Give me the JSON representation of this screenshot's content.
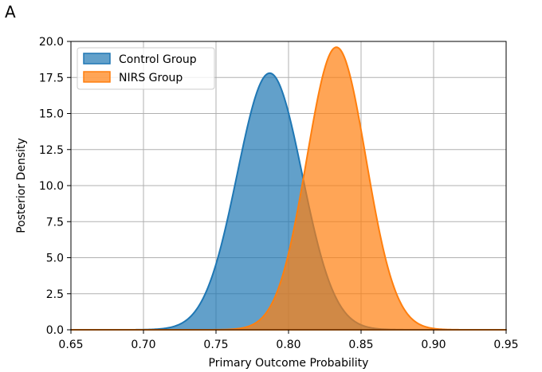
{
  "panel_label": "A",
  "chart_data": {
    "type": "area",
    "title": "",
    "xlabel": "Primary Outcome Probability",
    "ylabel": "Posterior Density",
    "xlim": [
      0.65,
      0.95
    ],
    "ylim": [
      0,
      20
    ],
    "xticks": [
      "0.65",
      "0.70",
      "0.75",
      "0.80",
      "0.85",
      "0.90",
      "0.95"
    ],
    "yticks": [
      "0.0",
      "2.5",
      "5.0",
      "7.5",
      "10.0",
      "12.5",
      "15.0",
      "17.5",
      "20.0"
    ],
    "grid": true,
    "legend_position": "top-left",
    "series": [
      {
        "name": "Control Group",
        "color": "#1f77b4",
        "distribution": "normal",
        "mean": 0.787,
        "sd": 0.0224,
        "peak_density": 17.8
      },
      {
        "name": "NIRS Group",
        "color": "#ff7f0e",
        "distribution": "normal",
        "mean": 0.833,
        "sd": 0.0204,
        "peak_density": 19.6
      }
    ]
  }
}
